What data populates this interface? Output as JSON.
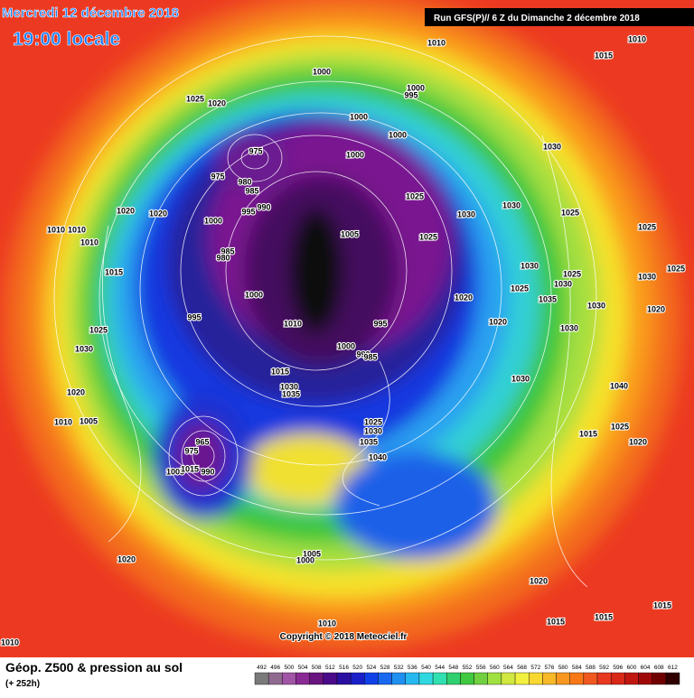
{
  "header": {
    "date": "Mercredi 12 décembre 2018",
    "time": "19:00 locale",
    "run": "Run GFS(P)// 6 Z du Dimanche 2 décembre 2018"
  },
  "footer": {
    "title": "Géop. Z500 & pression au sol",
    "lead": "(+ 252h)",
    "copyright": "Copyright © 2018 Meteociel.fr"
  },
  "scale": {
    "values": [
      492,
      496,
      500,
      504,
      508,
      512,
      516,
      520,
      524,
      528,
      532,
      536,
      540,
      544,
      548,
      552,
      556,
      560,
      564,
      568,
      572,
      576,
      580,
      584,
      588,
      592,
      596,
      600,
      604,
      608,
      612
    ],
    "colors": [
      "#7a7a7a",
      "#8f6a8f",
      "#a055a5",
      "#8a2a95",
      "#6a1580",
      "#4a0a8a",
      "#2a10a0",
      "#1a20c8",
      "#1040e8",
      "#1868f0",
      "#2090f0",
      "#28b8f0",
      "#30d8e0",
      "#30e0b0",
      "#30d070",
      "#40c840",
      "#70d040",
      "#a0e040",
      "#d0e840",
      "#f0f040",
      "#f8d830",
      "#f8b828",
      "#f89820",
      "#f87818",
      "#f05820",
      "#e83820",
      "#d82818",
      "#c01810",
      "#a00808",
      "#700000",
      "#300000"
    ]
  },
  "isobars": [
    1010,
    1010,
    1015,
    1000,
    1000,
    995,
    1025,
    1020,
    1000,
    1000,
    975,
    1000,
    975,
    980,
    985,
    1030,
    1020,
    1020,
    995,
    990,
    1000,
    1025,
    1030,
    1030,
    1025,
    1025,
    1010,
    1010,
    1010,
    1005,
    1025,
    985,
    980,
    1015,
    1030,
    1025,
    1030,
    1025,
    1030,
    1025,
    1035,
    1000,
    1020,
    1030,
    1020,
    995,
    1010,
    995,
    1020,
    1030,
    1025,
    1000,
    990,
    985,
    1030,
    1015,
    1030,
    1040,
    1030,
    1035,
    1020,
    1010,
    1005,
    1025,
    1030,
    1015,
    1025,
    1035,
    1020,
    1040,
    965,
    975,
    990,
    1005,
    1015,
    1005,
    1000,
    1020,
    1020,
    1015,
    1015,
    1015,
    1010,
    1010
  ]
}
